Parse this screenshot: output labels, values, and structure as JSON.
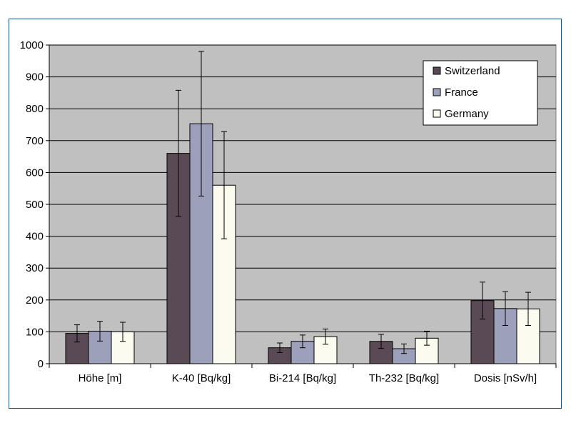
{
  "chart_data": {
    "type": "bar",
    "categories": [
      "Höhe [m]",
      "K-40 [Bq/kg]",
      "Bi-214 [Bq/kg]",
      "Th-232 [Bq/kg]",
      "Dosis [nSv/h]"
    ],
    "series": [
      {
        "name": "Switzerland",
        "color": "#5a4a55",
        "values": [
          95,
          660,
          50,
          70,
          198
        ],
        "error": [
          27,
          198,
          15,
          22,
          58
        ]
      },
      {
        "name": "France",
        "color": "#9da0bb",
        "values": [
          102,
          753,
          70,
          47,
          173
        ],
        "error": [
          31,
          227,
          20,
          15,
          53
        ]
      },
      {
        "name": "Germany",
        "color": "#fbfbf0",
        "values": [
          100,
          560,
          85,
          80,
          172
        ],
        "error": [
          30,
          168,
          24,
          22,
          52
        ]
      }
    ],
    "ylim": [
      0,
      1000
    ],
    "yticks": [
      "0",
      "100",
      "200",
      "300",
      "400",
      "500",
      "600",
      "700",
      "800",
      "900",
      "1000"
    ],
    "grid": true,
    "legend_position": "top-right",
    "plot_background": "#c0c0c0"
  }
}
